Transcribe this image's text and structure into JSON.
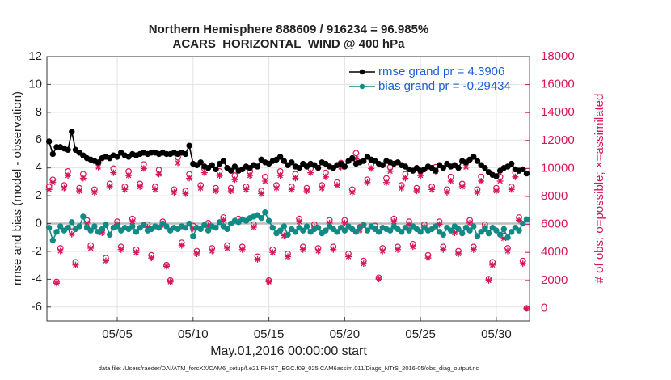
{
  "chart_data": {
    "type": "line",
    "title": [
      "Northern Hemisphere 888609 / 916234 = 96.985%",
      "ACARS_HORIZONTAL_WIND @ 400 hPa"
    ],
    "xlabel": "May.01,2016 00:00:00 start",
    "ylabel": "rmse and bias (model - observation)",
    "y2label": "# of obs: o=possible; ×=assimilated",
    "footnote": "data file: /Users/raeder/DAI/ATM_forcXX/CAM6_setup/f.e21.FHIST_BGC.f09_025.CAM6assim.011/Diags_NTrS_2016-05/obs_diag_output.nc",
    "xlim": [
      0.36,
      32.19
    ],
    "xticks": [
      {
        "value": 5,
        "label": "05/05"
      },
      {
        "value": 10,
        "label": "05/10"
      },
      {
        "value": 15,
        "label": "05/15"
      },
      {
        "value": 20,
        "label": "05/20"
      },
      {
        "value": 25,
        "label": "05/25"
      },
      {
        "value": 30,
        "label": "05/30"
      }
    ],
    "ylim": [
      -7,
      12
    ],
    "yticks": [
      -6,
      -4,
      -2,
      0,
      2,
      4,
      6,
      8,
      10,
      12
    ],
    "y2lim": [
      -900,
      18000
    ],
    "y2ticks": [
      0,
      2000,
      4000,
      6000,
      8000,
      10000,
      12000,
      14000,
      16000,
      18000
    ],
    "grid": true,
    "legend": "upper right",
    "x": [
      0.5,
      0.75,
      1,
      1.25,
      1.5,
      1.75,
      2,
      2.25,
      2.5,
      2.75,
      3,
      3.25,
      3.5,
      3.75,
      4,
      4.25,
      4.5,
      4.75,
      5,
      5.25,
      5.5,
      5.75,
      6,
      6.25,
      6.5,
      6.75,
      7,
      7.25,
      7.5,
      7.75,
      8,
      8.25,
      8.5,
      8.75,
      9,
      9.25,
      9.5,
      9.75,
      10,
      10.25,
      10.5,
      10.75,
      11,
      11.25,
      11.5,
      11.75,
      12,
      12.25,
      12.5,
      12.75,
      13,
      13.25,
      13.5,
      13.75,
      14,
      14.25,
      14.5,
      14.75,
      15,
      15.25,
      15.5,
      15.75,
      16,
      16.25,
      16.5,
      16.75,
      17,
      17.25,
      17.5,
      17.75,
      18,
      18.25,
      18.5,
      18.75,
      19,
      19.25,
      19.5,
      19.75,
      20,
      20.25,
      20.5,
      20.75,
      21,
      21.25,
      21.5,
      21.75,
      22,
      22.25,
      22.5,
      22.75,
      23,
      23.25,
      23.5,
      23.75,
      24,
      24.25,
      24.5,
      24.75,
      25,
      25.25,
      25.5,
      25.75,
      26,
      26.25,
      26.5,
      26.75,
      27,
      27.25,
      27.5,
      27.75,
      28,
      28.25,
      28.5,
      28.75,
      29,
      29.25,
      29.5,
      29.75,
      30,
      30.25,
      30.5,
      30.75,
      31,
      31.25,
      31.5,
      31.75,
      32
    ],
    "series": [
      {
        "name": "rmse grand pr = 4.3906",
        "color": "#000000",
        "marker": "o",
        "line": true,
        "values": [
          5.9,
          5.0,
          5.5,
          5.5,
          5.4,
          5.3,
          6.6,
          5.3,
          5.1,
          4.9,
          4.7,
          4.6,
          4.5,
          4.4,
          4.7,
          4.8,
          4.7,
          4.9,
          4.8,
          5.1,
          4.9,
          4.8,
          5.0,
          4.9,
          5.0,
          5.1,
          5.0,
          5.1,
          5.1,
          5.0,
          5.1,
          5.0,
          5.0,
          5.1,
          5.0,
          5.1,
          5.0,
          5.6,
          4.3,
          4.2,
          4.4,
          4.1,
          4.0,
          4.2,
          3.9,
          4.3,
          4.5,
          4.0,
          3.8,
          4.1,
          3.8,
          3.9,
          4.1,
          4.0,
          4.2,
          4.1,
          4.6,
          4.4,
          4.3,
          4.5,
          4.6,
          4.8,
          4.5,
          4.2,
          4.4,
          4.1,
          4.0,
          4.3,
          4.1,
          4.3,
          4.2,
          4.0,
          4.4,
          4.3,
          4.1,
          4.0,
          4.2,
          4.3,
          4.1,
          4.5,
          4.7,
          4.3,
          4.4,
          4.5,
          4.8,
          4.6,
          4.5,
          4.3,
          4.2,
          4.5,
          4.4,
          4.3,
          4.4,
          4.2,
          4.1,
          3.9,
          3.8,
          4.0,
          3.8,
          3.9,
          4.1,
          4.0,
          3.8,
          4.2,
          4.0,
          4.3,
          4.1,
          4.2,
          4.0,
          4.5,
          4.4,
          4.6,
          4.8,
          4.5,
          4.2,
          4.0,
          3.7,
          3.5,
          3.4,
          3.8,
          4.0,
          4.1,
          4.3,
          3.9,
          3.8,
          3.9,
          3.6
        ]
      },
      {
        "name": "bias grand pr = -0.29434",
        "color": "#118a85",
        "marker": "o",
        "line": true,
        "values": [
          -0.3,
          -1.2,
          -0.6,
          -0.2,
          -0.5,
          -0.3,
          0.1,
          -0.4,
          -0.2,
          0.5,
          -0.3,
          -0.5,
          -0.2,
          -0.6,
          -0.4,
          -0.1,
          -0.8,
          -0.3,
          -0.2,
          -0.5,
          -0.3,
          -0.4,
          -0.2,
          -0.6,
          -0.3,
          -0.1,
          -0.5,
          -0.4,
          -0.2,
          -0.3,
          0.0,
          -0.2,
          -0.5,
          -0.3,
          -0.4,
          -0.2,
          -0.3,
          0.0,
          -0.9,
          -0.3,
          -0.4,
          -0.1,
          -0.5,
          -0.2,
          -0.3,
          0.1,
          -0.2,
          -0.4,
          0.0,
          0.2,
          0.1,
          0.3,
          0.2,
          0.4,
          0.5,
          0.6,
          0.4,
          0.8,
          0.2,
          -0.3,
          -0.7,
          -0.5,
          -0.2,
          -0.8,
          -0.4,
          -0.6,
          -0.3,
          -0.5,
          -0.2,
          -0.6,
          -0.4,
          -0.3,
          -0.7,
          -0.5,
          -0.2,
          -0.4,
          -0.6,
          -0.3,
          -0.5,
          -0.2,
          -0.4,
          -0.6,
          -0.3,
          -0.1,
          -0.5,
          -0.2,
          -0.4,
          -0.6,
          -0.3,
          -0.4,
          -0.5,
          -0.2,
          -0.4,
          -0.6,
          -0.3,
          -0.5,
          -0.2,
          -0.4,
          -0.6,
          -0.3,
          -0.5,
          -0.4,
          -0.2,
          -0.6,
          -0.8,
          -0.3,
          -0.5,
          -0.2,
          -0.4,
          -0.7,
          -0.3,
          -0.5,
          -0.2,
          -0.9,
          -0.6,
          -0.4,
          -0.7,
          -0.3,
          -0.5,
          -0.8,
          -0.4,
          -1.0,
          -0.6,
          -0.3,
          -0.5,
          0.0,
          0.3
        ]
      },
      {
        "color": "#d6175a",
        "marker": "o-open",
        "line": false,
        "axis": "y2",
        "values": [
          8700,
          9200,
          1900,
          4300,
          8800,
          9800,
          5500,
          3300,
          8600,
          9600,
          6300,
          4500,
          8500,
          10400,
          5600,
          3600,
          8900,
          10000,
          6200,
          4400,
          8700,
          9800,
          6400,
          4200,
          8900,
          10300,
          6000,
          3800,
          8700,
          9900,
          6200,
          3100,
          2000,
          8500,
          10800,
          4700,
          8400,
          9600,
          5900,
          4100,
          8800,
          10000,
          6100,
          4300,
          8600,
          9800,
          6500,
          4500,
          8600,
          9500,
          6400,
          4400,
          8700,
          9800,
          6000,
          3700,
          8400,
          9400,
          2000,
          4200,
          8800,
          9800,
          5400,
          3900,
          8700,
          9600,
          6400,
          4400,
          8600,
          10000,
          6000,
          4300,
          8800,
          9700,
          6300,
          4400,
          9000,
          10400,
          6300,
          3900,
          8500,
          11100,
          5800,
          3400,
          9200,
          10300,
          5900,
          2200,
          4300,
          9300,
          10100,
          6400,
          4400,
          8800,
          9600,
          6200,
          4600,
          8600,
          9800,
          6000,
          3800,
          8700,
          10100,
          6200,
          4400,
          8500,
          9400,
          5600,
          4100,
          8900,
          10400,
          6300,
          4400,
          8500,
          9400,
          6000,
          2100,
          3300,
          8600,
          9400,
          5200,
          4300,
          8700,
          9700,
          6500,
          3400,
          0
        ]
      },
      {
        "color": "#d6175a",
        "marker": "asterisk",
        "line": false,
        "axis": "y2",
        "values": [
          8500,
          9000,
          1800,
          4100,
          8600,
          9500,
          5300,
          3100,
          8400,
          9300,
          6100,
          4300,
          8300,
          10100,
          5400,
          3400,
          8700,
          9700,
          6000,
          4200,
          8500,
          9500,
          6200,
          4000,
          8700,
          10000,
          5800,
          3600,
          8500,
          9600,
          6000,
          3000,
          1900,
          8300,
          10400,
          4500,
          8200,
          9300,
          5700,
          3900,
          8600,
          9700,
          5900,
          4100,
          8400,
          9500,
          6300,
          4300,
          8400,
          9200,
          6200,
          4200,
          8500,
          9500,
          5800,
          3500,
          8200,
          9100,
          1900,
          4000,
          8600,
          9500,
          5200,
          3700,
          8500,
          9300,
          6200,
          4200,
          8400,
          9700,
          5800,
          4100,
          8600,
          9400,
          6100,
          4200,
          8800,
          10100,
          6100,
          3700,
          8300,
          10700,
          5600,
          3200,
          9000,
          10000,
          5700,
          2100,
          4100,
          9000,
          9800,
          6200,
          4200,
          8600,
          9300,
          6000,
          4400,
          8400,
          9500,
          5800,
          3600,
          8500,
          9800,
          6000,
          4200,
          8300,
          9100,
          5400,
          3900,
          8700,
          10100,
          6100,
          4200,
          8300,
          9100,
          5800,
          2000,
          3100,
          8400,
          9100,
          5000,
          4100,
          8500,
          9400,
          6300,
          3200,
          0
        ]
      }
    ]
  }
}
